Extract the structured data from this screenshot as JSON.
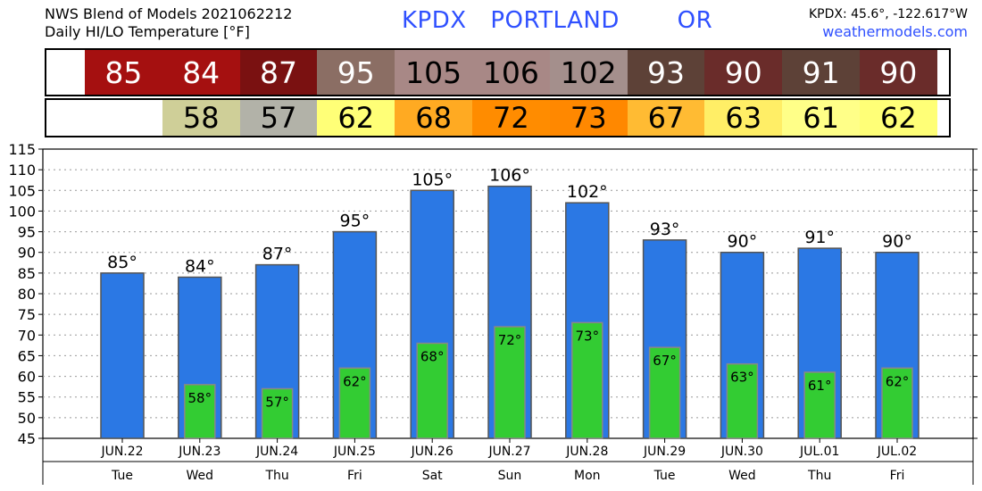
{
  "header": {
    "title_line1": "NWS Blend of Models 2021062212",
    "title_line2": "Daily HI/LO Temperature [°F]",
    "station": "KPDX",
    "city": "PORTLAND",
    "state": "OR",
    "coords": "KPDX: 45.6°, -122.617°W",
    "site": "weathermodels.com"
  },
  "hi_strip": {
    "values": [
      "85",
      "84",
      "87",
      "95",
      "105",
      "106",
      "102",
      "93",
      "90",
      "91",
      "90"
    ],
    "colors": [
      "#a51010",
      "#a51010",
      "#7a1111",
      "#8b6e64",
      "#a88886",
      "#a88886",
      "#a48f8c",
      "#5d4137",
      "#6a2c2a",
      "#5d4137",
      "#6a2c2a"
    ],
    "text_colors": [
      "#ffffff",
      "#ffffff",
      "#ffffff",
      "#ffffff",
      "#000000",
      "#000000",
      "#000000",
      "#ffffff",
      "#ffffff",
      "#ffffff",
      "#ffffff"
    ]
  },
  "lo_strip": {
    "values": [
      "",
      "58",
      "57",
      "62",
      "68",
      "72",
      "73",
      "67",
      "63",
      "61",
      "62"
    ],
    "colors": [
      "#ffffff",
      "#cfcf98",
      "#b2b2a8",
      "#ffff77",
      "#ffaa22",
      "#ff8c00",
      "#ff8800",
      "#ffbb33",
      "#ffee66",
      "#ffff88",
      "#ffff77"
    ]
  },
  "chart_data": {
    "type": "bar",
    "categories": [
      "JUN.22",
      "JUN.23",
      "JUN.24",
      "JUN.25",
      "JUN.26",
      "JUN.27",
      "JUN.28",
      "JUN.29",
      "JUN.30",
      "JUL.01",
      "JUL.02"
    ],
    "days": [
      "Tue",
      "Wed",
      "Thu",
      "Fri",
      "Sat",
      "Sun",
      "Mon",
      "Tue",
      "Wed",
      "Thu",
      "Fri"
    ],
    "series": [
      {
        "values": [
          85,
          84,
          87,
          95,
          105,
          106,
          102,
          93,
          90,
          91,
          90
        ],
        "labels": [
          "85°",
          "84°",
          "87°",
          "95°",
          "105°",
          "106°",
          "102°",
          "93°",
          "90°",
          "91°",
          "90°"
        ],
        "color": "#2b78e4"
      },
      {
        "values": [
          null,
          58,
          57,
          62,
          68,
          72,
          73,
          67,
          63,
          61,
          62
        ],
        "labels": [
          "",
          "58°",
          "57°",
          "62°",
          "68°",
          "72°",
          "73°",
          "67°",
          "63°",
          "61°",
          "62°"
        ],
        "color": "#33cc33"
      }
    ],
    "y_ticks": [
      "45",
      "50",
      "55",
      "60",
      "65",
      "70",
      "75",
      "80",
      "85",
      "90",
      "95",
      "100",
      "105",
      "110",
      "115"
    ],
    "ylim": [
      45,
      115
    ],
    "grid": true
  }
}
